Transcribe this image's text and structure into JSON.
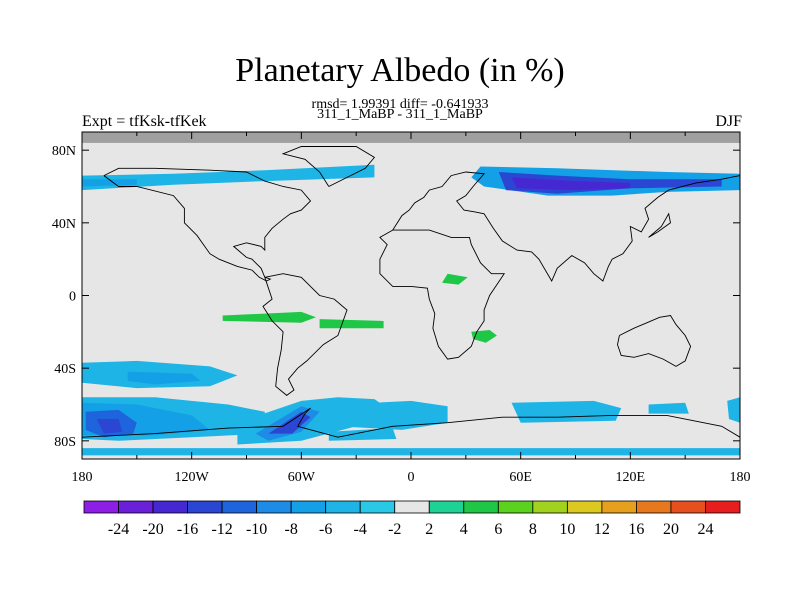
{
  "chart_data": {
    "type": "heatmap",
    "title": "Planetary Albedo (in %)",
    "stats_line": "rmsd= 1.99391 diff= -0.641933",
    "comparison_line": "311_1_MaBP - 311_1_MaBP",
    "left_label": "Expt = tfKsk-tfKek",
    "right_label": "DJF",
    "x_ticks": [
      {
        "value": -180,
        "label": "180"
      },
      {
        "value": -120,
        "label": "120W"
      },
      {
        "value": -60,
        "label": "60W"
      },
      {
        "value": 0,
        "label": "0"
      },
      {
        "value": 60,
        "label": "60E"
      },
      {
        "value": 120,
        "label": "120E"
      },
      {
        "value": 180,
        "label": "180"
      }
    ],
    "y_ticks": [
      {
        "value": 80,
        "label": "80N"
      },
      {
        "value": 40,
        "label": "40N"
      },
      {
        "value": 0,
        "label": "0"
      },
      {
        "value": -40,
        "label": "40S"
      },
      {
        "value": -80,
        "label": "80S"
      }
    ],
    "xlim": [
      -180,
      180
    ],
    "ylim": [
      -90,
      90
    ],
    "colorbar": {
      "labels": [
        "-24",
        "-20",
        "-16",
        "-12",
        "-10",
        "-8",
        "-6",
        "-4",
        "-2",
        "2",
        "4",
        "6",
        "8",
        "10",
        "12",
        "16",
        "20",
        "24"
      ],
      "colors": [
        "#8c1ee6",
        "#6a1fd8",
        "#4628d2",
        "#2a46d2",
        "#1e64dc",
        "#1e8ce6",
        "#14a0e6",
        "#1eb4e6",
        "#28c8e6",
        "#e6e6e6",
        "#1ed296",
        "#1ec846",
        "#5ad21e",
        "#a0d21e",
        "#dcc81e",
        "#e6a01e",
        "#e6781e",
        "#e6501e",
        "#e61e1e"
      ]
    },
    "background_color": "#e6e6e6",
    "missing_color": "#a0a0a0",
    "regions": [
      {
        "level": "-4",
        "points": [
          [
            -180,
            66
          ],
          [
            -130,
            67
          ],
          [
            -80,
            69
          ],
          [
            -20,
            72
          ],
          [
            -20,
            65
          ],
          [
            -80,
            63
          ],
          [
            -130,
            61
          ],
          [
            -180,
            58
          ]
        ]
      },
      {
        "level": "-6",
        "points": [
          [
            -180,
            64
          ],
          [
            -150,
            64
          ],
          [
            -150,
            61
          ],
          [
            -180,
            60
          ]
        ]
      },
      {
        "level": "-6",
        "points": [
          [
            38,
            71
          ],
          [
            80,
            70
          ],
          [
            140,
            68
          ],
          [
            180,
            67
          ],
          [
            180,
            58
          ],
          [
            140,
            57
          ],
          [
            110,
            55
          ],
          [
            75,
            55
          ],
          [
            40,
            60
          ],
          [
            33,
            65
          ]
        ]
      },
      {
        "level": "-12",
        "points": [
          [
            48,
            68
          ],
          [
            80,
            66
          ],
          [
            120,
            64
          ],
          [
            170,
            64
          ],
          [
            170,
            60
          ],
          [
            120,
            59
          ],
          [
            80,
            56
          ],
          [
            52,
            58
          ]
        ]
      },
      {
        "level": "-16",
        "points": [
          [
            55,
            65
          ],
          [
            90,
            63
          ],
          [
            120,
            62
          ],
          [
            120,
            59
          ],
          [
            90,
            58
          ],
          [
            58,
            59
          ]
        ]
      },
      {
        "level": "-4",
        "points": [
          [
            -180,
            -37
          ],
          [
            -150,
            -36
          ],
          [
            -110,
            -39
          ],
          [
            -95,
            -44
          ],
          [
            -110,
            -50
          ],
          [
            -150,
            -51
          ],
          [
            -180,
            -48
          ]
        ]
      },
      {
        "level": "-6",
        "points": [
          [
            -155,
            -42
          ],
          [
            -120,
            -43
          ],
          [
            -115,
            -47
          ],
          [
            -140,
            -49
          ],
          [
            -155,
            -47
          ]
        ]
      },
      {
        "level": "-4",
        "points": [
          [
            -180,
            -56
          ],
          [
            -140,
            -56
          ],
          [
            -100,
            -60
          ],
          [
            -80,
            -64
          ],
          [
            -80,
            -76
          ],
          [
            -120,
            -78
          ],
          [
            -160,
            -80
          ],
          [
            -180,
            -79
          ]
        ]
      },
      {
        "level": "-6",
        "points": [
          [
            -180,
            -59
          ],
          [
            -150,
            -60
          ],
          [
            -120,
            -66
          ],
          [
            -110,
            -74
          ],
          [
            -140,
            -77
          ],
          [
            -180,
            -77
          ]
        ]
      },
      {
        "level": "-10",
        "points": [
          [
            -178,
            -64
          ],
          [
            -160,
            -63
          ],
          [
            -150,
            -70
          ],
          [
            -152,
            -76
          ],
          [
            -168,
            -78
          ],
          [
            -178,
            -74
          ]
        ]
      },
      {
        "level": "-12",
        "points": [
          [
            -172,
            -68
          ],
          [
            -160,
            -68
          ],
          [
            -158,
            -75
          ],
          [
            -168,
            -76
          ]
        ]
      },
      {
        "level": "-4",
        "points": [
          [
            -95,
            -70
          ],
          [
            -60,
            -58
          ],
          [
            -40,
            -56
          ],
          [
            -20,
            -57
          ],
          [
            -10,
            -64
          ],
          [
            -30,
            -72
          ],
          [
            -60,
            -80
          ],
          [
            -95,
            -82
          ]
        ]
      },
      {
        "level": "-8",
        "points": [
          [
            -85,
            -76
          ],
          [
            -60,
            -61
          ],
          [
            -50,
            -64
          ],
          [
            -60,
            -75
          ],
          [
            -78,
            -80
          ]
        ]
      },
      {
        "level": "-12",
        "points": [
          [
            -78,
            -76
          ],
          [
            -60,
            -64
          ],
          [
            -55,
            -67
          ],
          [
            -65,
            -76
          ]
        ]
      },
      {
        "level": "-4",
        "points": [
          [
            -40,
            -60
          ],
          [
            0,
            -58
          ],
          [
            20,
            -61
          ],
          [
            20,
            -70
          ],
          [
            -5,
            -74
          ],
          [
            -40,
            -72
          ]
        ]
      },
      {
        "level": "-4",
        "points": [
          [
            -45,
            -75
          ],
          [
            -10,
            -73
          ],
          [
            -8,
            -79
          ],
          [
            -45,
            -80
          ]
        ]
      },
      {
        "level": "-4",
        "points": [
          [
            55,
            -59
          ],
          [
            100,
            -58
          ],
          [
            115,
            -62
          ],
          [
            112,
            -69
          ],
          [
            60,
            -70
          ]
        ]
      },
      {
        "level": "-4",
        "points": [
          [
            130,
            -60
          ],
          [
            150,
            -59
          ],
          [
            152,
            -65
          ],
          [
            130,
            -65
          ]
        ]
      },
      {
        "level": "-4",
        "points": [
          [
            -180,
            -84
          ],
          [
            180,
            -84
          ],
          [
            180,
            -88
          ],
          [
            -180,
            -88
          ]
        ]
      },
      {
        "level": "-4",
        "points": [
          [
            173,
            -58
          ],
          [
            180,
            -56
          ],
          [
            180,
            -70
          ],
          [
            174,
            -68
          ]
        ]
      },
      {
        "level": "4",
        "points": [
          [
            -103,
            -11
          ],
          [
            -60,
            -9
          ],
          [
            -52,
            -12
          ],
          [
            -60,
            -15
          ],
          [
            -103,
            -14
          ]
        ]
      },
      {
        "level": "4",
        "points": [
          [
            -50,
            -13
          ],
          [
            -15,
            -14
          ],
          [
            -15,
            -18
          ],
          [
            -50,
            -18
          ]
        ]
      },
      {
        "level": "4",
        "points": [
          [
            17,
            7
          ],
          [
            26,
            6
          ],
          [
            31,
            10
          ],
          [
            20,
            12
          ]
        ]
      },
      {
        "level": "4",
        "points": [
          [
            33,
            -20
          ],
          [
            43,
            -19
          ],
          [
            47,
            -22
          ],
          [
            41,
            -26
          ],
          [
            34,
            -24
          ]
        ]
      }
    ],
    "land_outlines": [
      [
        [
          -10,
          36
        ],
        [
          -5,
          44
        ],
        [
          -1,
          47
        ],
        [
          2,
          51
        ],
        [
          7,
          54
        ],
        [
          10,
          58
        ],
        [
          17,
          60
        ],
        [
          22,
          66
        ],
        [
          30,
          68
        ],
        [
          40,
          67
        ],
        [
          34,
          60
        ],
        [
          30,
          55
        ],
        [
          25,
          52
        ],
        [
          29,
          47
        ],
        [
          35,
          46
        ],
        [
          40,
          45
        ],
        [
          45,
          37
        ],
        [
          50,
          30
        ],
        [
          58,
          25
        ],
        [
          66,
          24
        ],
        [
          70,
          20
        ],
        [
          77,
          8
        ],
        [
          80,
          15
        ],
        [
          88,
          22
        ],
        [
          95,
          18
        ],
        [
          100,
          12
        ],
        [
          105,
          8
        ],
        [
          108,
          16
        ],
        [
          110,
          20
        ],
        [
          116,
          23
        ],
        [
          121,
          30
        ],
        [
          120,
          38
        ],
        [
          126,
          35
        ],
        [
          130,
          42
        ],
        [
          128,
          48
        ],
        [
          135,
          54
        ],
        [
          141,
          58
        ],
        [
          156,
          62
        ],
        [
          170,
          64
        ],
        [
          180,
          66
        ]
      ],
      [
        [
          -10,
          36
        ],
        [
          -17,
          32
        ],
        [
          -13,
          28
        ],
        [
          -17,
          20
        ],
        [
          -17,
          12
        ],
        [
          -10,
          5
        ],
        [
          0,
          5
        ],
        [
          9,
          4
        ],
        [
          10,
          -2
        ],
        [
          13,
          -10
        ],
        [
          12,
          -18
        ],
        [
          15,
          -28
        ],
        [
          20,
          -35
        ],
        [
          26,
          -34
        ],
        [
          33,
          -28
        ],
        [
          36,
          -20
        ],
        [
          40,
          -14
        ],
        [
          40,
          -8
        ],
        [
          43,
          0
        ],
        [
          51,
          12
        ],
        [
          44,
          12
        ],
        [
          38,
          18
        ],
        [
          33,
          28
        ],
        [
          32,
          32
        ],
        [
          22,
          32
        ],
        [
          10,
          36
        ],
        [
          -10,
          36
        ]
      ],
      [
        [
          -168,
          66
        ],
        [
          -160,
          60
        ],
        [
          -150,
          60
        ],
        [
          -130,
          55
        ],
        [
          -124,
          48
        ],
        [
          -124,
          40
        ],
        [
          -117,
          33
        ],
        [
          -110,
          23
        ],
        [
          -105,
          20
        ],
        [
          -95,
          16
        ],
        [
          -87,
          14
        ],
        [
          -83,
          10
        ],
        [
          -79,
          8
        ],
        [
          -77,
          9
        ],
        [
          -80,
          10
        ],
        [
          -82,
          15
        ],
        [
          -87,
          20
        ],
        [
          -90,
          21
        ],
        [
          -97,
          27
        ],
        [
          -90,
          29
        ],
        [
          -82,
          27
        ],
        [
          -80,
          25
        ],
        [
          -80,
          32
        ],
        [
          -76,
          37
        ],
        [
          -70,
          42
        ],
        [
          -66,
          45
        ],
        [
          -60,
          47
        ],
        [
          -55,
          52
        ],
        [
          -60,
          58
        ],
        [
          -70,
          60
        ],
        [
          -80,
          63
        ],
        [
          -90,
          68
        ],
        [
          -110,
          69
        ],
        [
          -140,
          70
        ],
        [
          -160,
          70
        ],
        [
          -168,
          66
        ]
      ],
      [
        [
          -80,
          10
        ],
        [
          -76,
          -2
        ],
        [
          -81,
          -6
        ],
        [
          -76,
          -14
        ],
        [
          -70,
          -20
        ],
        [
          -71,
          -30
        ],
        [
          -73,
          -40
        ],
        [
          -74,
          -50
        ],
        [
          -68,
          -55
        ],
        [
          -64,
          -52
        ],
        [
          -67,
          -46
        ],
        [
          -62,
          -40
        ],
        [
          -57,
          -36
        ],
        [
          -48,
          -27
        ],
        [
          -40,
          -22
        ],
        [
          -35,
          -8
        ],
        [
          -42,
          -2
        ],
        [
          -50,
          0
        ],
        [
          -55,
          5
        ],
        [
          -60,
          10
        ],
        [
          -70,
          12
        ],
        [
          -80,
          10
        ]
      ],
      [
        [
          114,
          -22
        ],
        [
          122,
          -18
        ],
        [
          129,
          -15
        ],
        [
          136,
          -12
        ],
        [
          142,
          -11
        ],
        [
          145,
          -16
        ],
        [
          150,
          -22
        ],
        [
          153,
          -28
        ],
        [
          150,
          -36
        ],
        [
          145,
          -39
        ],
        [
          138,
          -35
        ],
        [
          130,
          -32
        ],
        [
          122,
          -34
        ],
        [
          115,
          -33
        ],
        [
          113,
          -27
        ],
        [
          114,
          -22
        ]
      ],
      [
        [
          -180,
          -78
        ],
        [
          -140,
          -76
        ],
        [
          -100,
          -73
        ],
        [
          -70,
          -72
        ],
        [
          -55,
          -62
        ],
        [
          -58,
          -65
        ],
        [
          -62,
          -72
        ],
        [
          -40,
          -78
        ],
        [
          -10,
          -72
        ],
        [
          20,
          -70
        ],
        [
          50,
          -67
        ],
        [
          80,
          -67
        ],
        [
          110,
          -66
        ],
        [
          140,
          -66
        ],
        [
          170,
          -72
        ],
        [
          180,
          -78
        ]
      ],
      [
        [
          -45,
          60
        ],
        [
          -25,
          70
        ],
        [
          -20,
          76
        ],
        [
          -30,
          82
        ],
        [
          -60,
          82
        ],
        [
          -70,
          78
        ],
        [
          -58,
          75
        ],
        [
          -50,
          68
        ],
        [
          -45,
          60
        ]
      ],
      [
        [
          130,
          32
        ],
        [
          135,
          35
        ],
        [
          142,
          40
        ],
        [
          141,
          45
        ],
        [
          137,
          38
        ],
        [
          130,
          32
        ]
      ]
    ]
  }
}
